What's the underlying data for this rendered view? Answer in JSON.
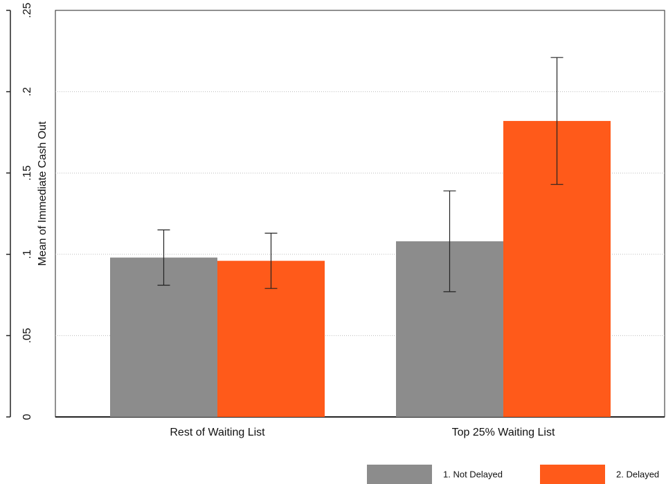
{
  "chart_data": {
    "type": "bar",
    "y_label": "Mean of Immediate Cash Out",
    "categories": [
      "Rest of Waiting List",
      "Top 25% Waiting List"
    ],
    "series": [
      {
        "name": "1. Not Delayed",
        "color": "#8c8c8c",
        "values": [
          0.098,
          0.108
        ],
        "errors": [
          0.017,
          0.031
        ]
      },
      {
        "name": "2. Delayed",
        "color": "#ff5a1a",
        "values": [
          0.096,
          0.182
        ],
        "errors": [
          0.017,
          0.039
        ]
      }
    ],
    "ylim": [
      0,
      0.25
    ],
    "yticks": [
      0,
      {
        "value": 0.05,
        "label": ".05"
      },
      {
        "value": 0.1,
        "label": ".1"
      },
      {
        "value": 0.15,
        "label": ".15"
      },
      {
        "value": 0.2,
        "label": ".2"
      },
      {
        "value": 0.25,
        "label": ".25"
      }
    ],
    "grid": true,
    "legend": "bottom"
  }
}
